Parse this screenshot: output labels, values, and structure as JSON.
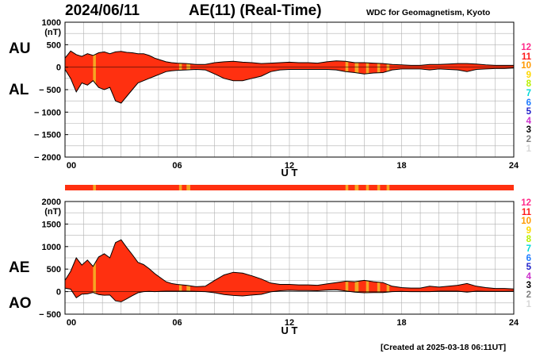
{
  "header": {
    "date": "2024/06/11",
    "title": "AE(11) (Real-Time)",
    "credit": "WDC for Geomagnetism, Kyoto"
  },
  "footer": "[Created at 2025-03-18 06:11UT]",
  "colors": {
    "fill": "#ff3010",
    "outline": "#000000",
    "highlight": "#f5a623",
    "grid": "#b0b0b0"
  },
  "legend": {
    "items": [
      {
        "label": "12",
        "color": "#ff2b8a"
      },
      {
        "label": "11",
        "color": "#ff1a1a"
      },
      {
        "label": "10",
        "color": "#ff9900"
      },
      {
        "label": "9",
        "color": "#ffd800"
      },
      {
        "label": "8",
        "color": "#b8f000"
      },
      {
        "label": "7",
        "color": "#00d8d8"
      },
      {
        "label": "6",
        "color": "#1e7bff"
      },
      {
        "label": "5",
        "color": "#2020c8"
      },
      {
        "label": "4",
        "color": "#cc33cc"
      },
      {
        "label": "3",
        "color": "#000000"
      },
      {
        "label": "2",
        "color": "#808080"
      },
      {
        "label": "1",
        "color": "#d8d8d8"
      }
    ]
  },
  "chart_data": [
    {
      "type": "area",
      "upper_series": "AU",
      "lower_series": "AL",
      "side_labels": [
        "AU",
        "AL"
      ],
      "ylabel": "(nT)",
      "xlabel": "U T",
      "ylim": [
        -2000,
        1000
      ],
      "yticks": [
        1000,
        500,
        0,
        -500,
        -1000,
        -1500,
        -2000
      ],
      "ytick_labels": [
        "1000",
        "500",
        "0",
        "− 500",
        "− 1000",
        "− 1500",
        "− 2000"
      ],
      "xlim": [
        0,
        24
      ],
      "xticks": [
        0,
        6,
        12,
        18,
        24
      ],
      "xtick_labels": [
        "00",
        "06",
        "12",
        "18",
        "24"
      ],
      "grid": true,
      "x": [
        0,
        0.3,
        0.6,
        0.9,
        1.2,
        1.5,
        1.8,
        2.1,
        2.4,
        2.7,
        3.0,
        3.3,
        3.6,
        3.9,
        4.2,
        4.5,
        4.8,
        5.1,
        5.4,
        5.7,
        6.0,
        6.5,
        7.0,
        7.5,
        8.0,
        8.5,
        9.0,
        9.5,
        10.0,
        10.5,
        11.0,
        11.5,
        12.0,
        12.5,
        13.0,
        13.5,
        14.0,
        14.5,
        15.0,
        15.5,
        16.0,
        16.5,
        17.0,
        17.5,
        18.0,
        18.5,
        19.0,
        19.5,
        20.0,
        20.5,
        21.0,
        21.5,
        22.0,
        22.5,
        23.0,
        23.5,
        24.0
      ],
      "AU": [
        200,
        360,
        280,
        240,
        300,
        260,
        320,
        340,
        300,
        340,
        350,
        330,
        320,
        300,
        300,
        260,
        200,
        160,
        120,
        100,
        90,
        80,
        60,
        60,
        100,
        120,
        130,
        110,
        100,
        80,
        90,
        100,
        110,
        100,
        100,
        90,
        120,
        140,
        130,
        100,
        100,
        90,
        80,
        60,
        50,
        40,
        40,
        60,
        60,
        70,
        80,
        80,
        70,
        50,
        40,
        40,
        40
      ],
      "AL": [
        -50,
        -250,
        -550,
        -350,
        -400,
        -300,
        -450,
        -500,
        -450,
        -750,
        -800,
        -650,
        -500,
        -350,
        -300,
        -250,
        -200,
        -150,
        -100,
        -80,
        -70,
        -60,
        -50,
        -60,
        -150,
        -250,
        -300,
        -300,
        -250,
        -200,
        -100,
        -60,
        -50,
        -50,
        -50,
        -50,
        -50,
        -60,
        -100,
        -120,
        -150,
        -130,
        -120,
        -60,
        -40,
        -40,
        -40,
        -60,
        -40,
        -50,
        -60,
        -100,
        -50,
        -40,
        -30,
        -30,
        -20
      ]
    },
    {
      "type": "area",
      "upper_series": "AE",
      "lower_series": "AO",
      "side_labels": [
        "AE",
        "AO"
      ],
      "ylabel": "(nT)",
      "xlabel": "U T",
      "ylim": [
        -500,
        2000
      ],
      "yticks": [
        2000,
        1500,
        1000,
        500,
        0,
        -500
      ],
      "ytick_labels": [
        "2000",
        "1500",
        "1000",
        "500",
        "0",
        "− 500"
      ],
      "xlim": [
        0,
        24
      ],
      "xticks": [
        0,
        6,
        12,
        18,
        24
      ],
      "xtick_labels": [
        "00",
        "06",
        "12",
        "18",
        "24"
      ],
      "grid": true,
      "x": [
        0,
        0.3,
        0.6,
        0.9,
        1.2,
        1.5,
        1.8,
        2.1,
        2.4,
        2.7,
        3.0,
        3.3,
        3.6,
        3.9,
        4.2,
        4.5,
        4.8,
        5.1,
        5.4,
        5.7,
        6.0,
        6.5,
        7.0,
        7.5,
        8.0,
        8.5,
        9.0,
        9.5,
        10.0,
        10.5,
        11.0,
        11.5,
        12.0,
        12.5,
        13.0,
        13.5,
        14.0,
        14.5,
        15.0,
        15.5,
        16.0,
        16.5,
        17.0,
        17.5,
        18.0,
        18.5,
        19.0,
        19.5,
        20.0,
        20.5,
        21.0,
        21.5,
        22.0,
        22.5,
        23.0,
        23.5,
        24.0
      ],
      "AE": [
        250,
        450,
        750,
        590,
        700,
        560,
        770,
        840,
        750,
        1090,
        1150,
        980,
        820,
        650,
        600,
        510,
        400,
        310,
        220,
        180,
        160,
        140,
        110,
        120,
        250,
        370,
        430,
        410,
        350,
        280,
        190,
        160,
        160,
        150,
        150,
        140,
        170,
        200,
        230,
        220,
        250,
        220,
        200,
        120,
        90,
        80,
        80,
        120,
        100,
        120,
        140,
        180,
        120,
        90,
        70,
        70,
        60
      ],
      "AO": [
        75,
        55,
        -135,
        -55,
        -50,
        -20,
        -65,
        -80,
        -75,
        -205,
        -225,
        -160,
        -90,
        -25,
        0,
        5,
        0,
        5,
        10,
        10,
        10,
        10,
        5,
        0,
        -25,
        -65,
        -85,
        -95,
        -75,
        -60,
        -5,
        20,
        30,
        25,
        25,
        20,
        35,
        40,
        15,
        -10,
        -25,
        -20,
        -20,
        0,
        5,
        0,
        0,
        0,
        10,
        10,
        10,
        -10,
        10,
        5,
        5,
        5,
        10
      ]
    }
  ],
  "highlight_intervals": [
    [
      1.5,
      1.65
    ],
    [
      6.1,
      6.25
    ],
    [
      6.5,
      6.7
    ],
    [
      15.0,
      15.15
    ],
    [
      15.5,
      15.7
    ],
    [
      16.1,
      16.25
    ],
    [
      16.7,
      16.85
    ],
    [
      17.2,
      17.35
    ]
  ]
}
